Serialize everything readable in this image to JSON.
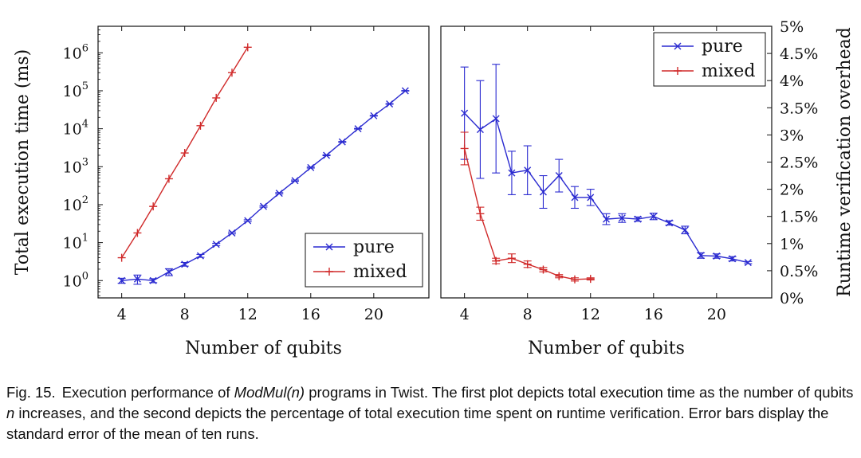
{
  "colors": {
    "pure": "#2a2ad0",
    "mixed": "#d02a2a",
    "axis": "#111111"
  },
  "chart_data": [
    {
      "type": "line",
      "title": "",
      "xlabel": "Number of qubits",
      "ylabel": "Total execution time (ms)",
      "yscale": "log",
      "xlim": [
        2.5,
        23.5
      ],
      "ylim": [
        0.35,
        5000000
      ],
      "xticks": [
        4,
        8,
        12,
        16,
        20
      ],
      "xtick_labels": [
        "4",
        "8",
        "12",
        "16",
        "20"
      ],
      "yticks": [
        1,
        10,
        100,
        1000,
        10000,
        100000,
        1000000
      ],
      "ytick_labels": [
        {
          "base": "10",
          "exp": "0"
        },
        {
          "base": "10",
          "exp": "1"
        },
        {
          "base": "10",
          "exp": "2"
        },
        {
          "base": "10",
          "exp": "3"
        },
        {
          "base": "10",
          "exp": "4"
        },
        {
          "base": "10",
          "exp": "5"
        },
        {
          "base": "10",
          "exp": "6"
        }
      ],
      "legend_position": "bottom-right",
      "series": [
        {
          "name": "pure",
          "color": "#2a2ad0",
          "marker": "x",
          "x": [
            4,
            5,
            6,
            7,
            8,
            9,
            10,
            11,
            12,
            13,
            14,
            15,
            16,
            17,
            18,
            19,
            20,
            21,
            22
          ],
          "y": [
            1.0,
            1.1,
            1.0,
            1.7,
            2.7,
            4.5,
            9,
            18,
            38,
            90,
            200,
            430,
            950,
            2000,
            4500,
            10000,
            22000,
            45000,
            100000
          ],
          "err": [
            0.15,
            0.3,
            0.12,
            0.35,
            0.3,
            0.4,
            0.6,
            1.0,
            2,
            4,
            8,
            15,
            30,
            50,
            100,
            200,
            400,
            800,
            1500
          ]
        },
        {
          "name": "mixed",
          "color": "#d02a2a",
          "marker": "+",
          "x": [
            4,
            5,
            6,
            7,
            8,
            9,
            10,
            11,
            12
          ],
          "y": [
            4,
            18,
            90,
            480,
            2300,
            12000,
            65000,
            300000,
            1400000
          ],
          "err": []
        }
      ]
    },
    {
      "type": "line",
      "title": "",
      "xlabel": "Number of qubits",
      "ylabel": "Runtime verification overhead",
      "ylim": [
        0,
        5
      ],
      "xlim": [
        2.5,
        23.5
      ],
      "xticks": [
        4,
        8,
        12,
        16,
        20
      ],
      "xtick_labels": [
        "4",
        "8",
        "12",
        "16",
        "20"
      ],
      "yticks": [
        0,
        0.5,
        1,
        1.5,
        2,
        2.5,
        3,
        3.5,
        4,
        4.5,
        5
      ],
      "ytick_labels": [
        "0%",
        "0.5%",
        "1%",
        "1.5%",
        "2%",
        "2.5%",
        "3%",
        "3.5%",
        "4%",
        "4.5%",
        "5%"
      ],
      "legend_position": "top-right",
      "series": [
        {
          "name": "pure",
          "color": "#2a2ad0",
          "marker": "x",
          "x": [
            4,
            5,
            6,
            7,
            8,
            9,
            10,
            11,
            12,
            13,
            14,
            15,
            16,
            17,
            18,
            19,
            20,
            21,
            22
          ],
          "y": [
            3.4,
            3.1,
            3.3,
            2.3,
            2.35,
            1.95,
            2.25,
            1.85,
            1.85,
            1.45,
            1.47,
            1.45,
            1.5,
            1.38,
            1.25,
            0.78,
            0.77,
            0.72,
            0.65
          ],
          "err": [
            0.85,
            0.9,
            1.0,
            0.4,
            0.45,
            0.3,
            0.3,
            0.2,
            0.15,
            0.1,
            0.08,
            0.04,
            0.06,
            0.04,
            0.07,
            0.05,
            0.04,
            0.04,
            0.02
          ]
        },
        {
          "name": "mixed",
          "color": "#d02a2a",
          "marker": "+",
          "x": [
            4,
            5,
            6,
            7,
            8,
            9,
            10,
            11,
            12
          ],
          "y": [
            2.75,
            1.55,
            0.68,
            0.73,
            0.62,
            0.52,
            0.4,
            0.34,
            0.35
          ],
          "err": [
            0.3,
            0.12,
            0.05,
            0.08,
            0.06,
            0.04,
            0.03,
            0.03,
            0.02
          ]
        }
      ]
    }
  ],
  "caption": {
    "label": "Fig. 15.",
    "text_before": "Execution performance of ",
    "program": "ModMul(n)",
    "text_mid": " programs in Twist. The first plot depicts total execution time as the number of qubits ",
    "var": "n",
    "text_after": " increases, and the second depicts the percentage of total execution time spent on runtime verification. Error bars display the standard error of the mean of ten runs."
  }
}
